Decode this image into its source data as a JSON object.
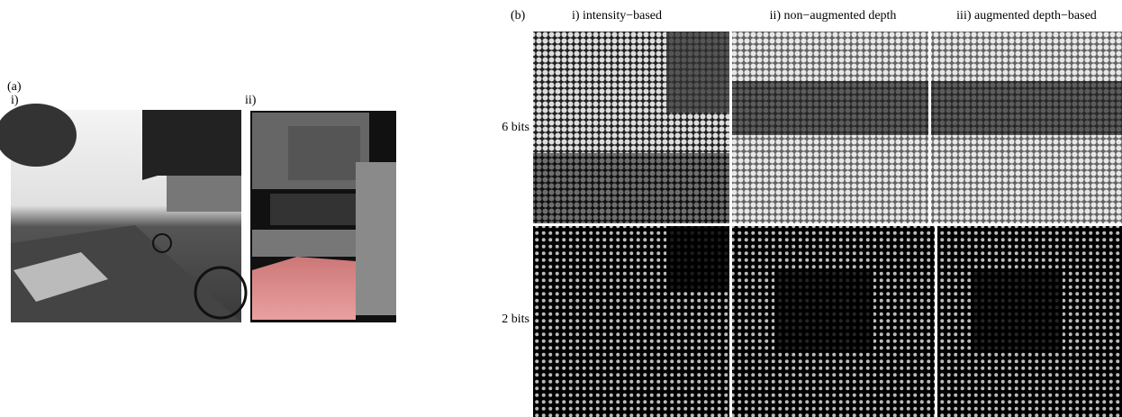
{
  "panel_a": {
    "label": "(a)",
    "sub_labels": [
      "i)",
      "ii)"
    ]
  },
  "panel_b": {
    "label": "(b)",
    "columns": [
      "i) intensity−based",
      "ii) non−augmented depth",
      "iii) augmented depth−based"
    ],
    "rows": [
      "6 bits",
      "2 bits"
    ]
  }
}
